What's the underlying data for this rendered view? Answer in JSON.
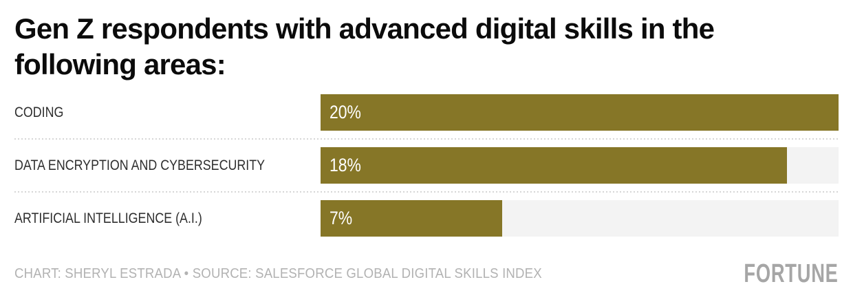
{
  "header": {
    "title_line1": "Gen Z respondents with advanced digital skills in the",
    "title_line2": "following areas:"
  },
  "chart_data": {
    "type": "bar",
    "orientation": "horizontal",
    "title": "Gen Z respondents with advanced digital skills in the following areas:",
    "categories": [
      "CODING",
      "DATA ENCRYPTION AND CYBERSECURITY",
      "ARTIFICIAL INTELLIGENCE (A.I.)"
    ],
    "values": [
      20,
      18,
      7
    ],
    "value_labels": [
      "20%",
      "18%",
      "7%"
    ],
    "xlim": [
      0,
      20
    ],
    "grid": false,
    "legend": false,
    "colors": {
      "bar": "#867627",
      "track": "#f3f3f3",
      "separator": "#d6d6d6",
      "value_text": "#ffffff",
      "label_text": "#2e2e2e",
      "title_text": "#0b0b0b",
      "credit_text": "#b2b2b2",
      "brand_text": "#a6a6a6"
    }
  },
  "footer": {
    "credit": "CHART: SHERYL ESTRADA • SOURCE: SALESFORCE GLOBAL DIGITAL SKILLS INDEX",
    "brand": "FORTUNE"
  }
}
